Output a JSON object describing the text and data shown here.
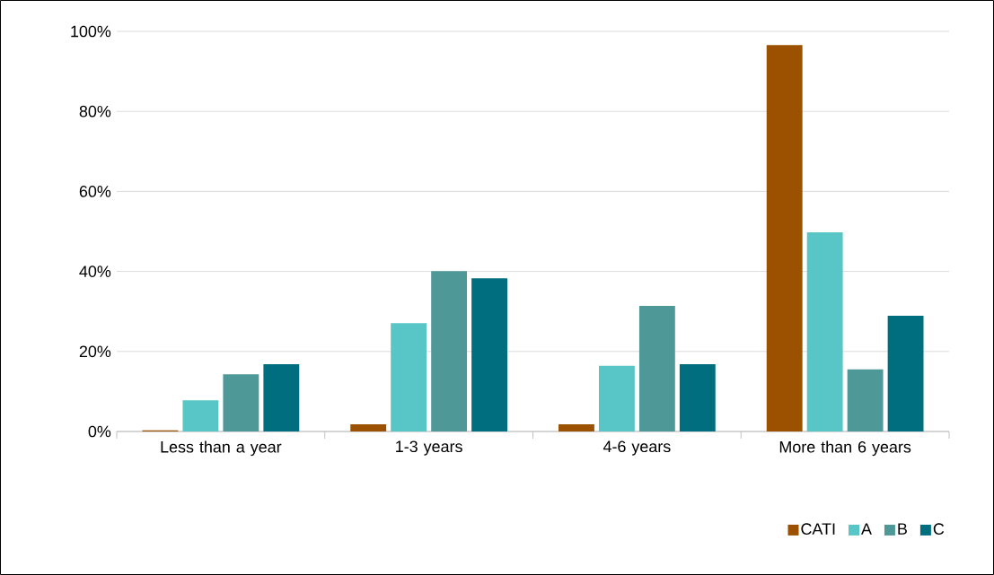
{
  "chart_data": {
    "type": "bar",
    "categories": [
      "Less than a year",
      "1-3 years",
      "4-6 years",
      "More than 6 years"
    ],
    "series": [
      {
        "name": "CATI",
        "color": "#9c5100",
        "values": [
          0.3,
          1.8,
          1.8,
          96.6
        ]
      },
      {
        "name": "A",
        "color": "#58c5c6",
        "values": [
          7.8,
          27.1,
          16.4,
          49.8
        ]
      },
      {
        "name": "B",
        "color": "#4f9898",
        "values": [
          14.3,
          40.1,
          31.4,
          15.5
        ]
      },
      {
        "name": "C",
        "color": "#006e7f",
        "values": [
          16.8,
          38.3,
          16.8,
          28.9
        ]
      }
    ],
    "ylim": [
      0,
      100
    ],
    "yticks": [
      {
        "value": 0,
        "label": "0%"
      },
      {
        "value": 20,
        "label": "20%"
      },
      {
        "value": 40,
        "label": "40%"
      },
      {
        "value": 60,
        "label": "60%"
      },
      {
        "value": 80,
        "label": "80%"
      },
      {
        "value": 100,
        "label": "100%"
      }
    ],
    "grid": "y",
    "legend": "bottom right"
  }
}
